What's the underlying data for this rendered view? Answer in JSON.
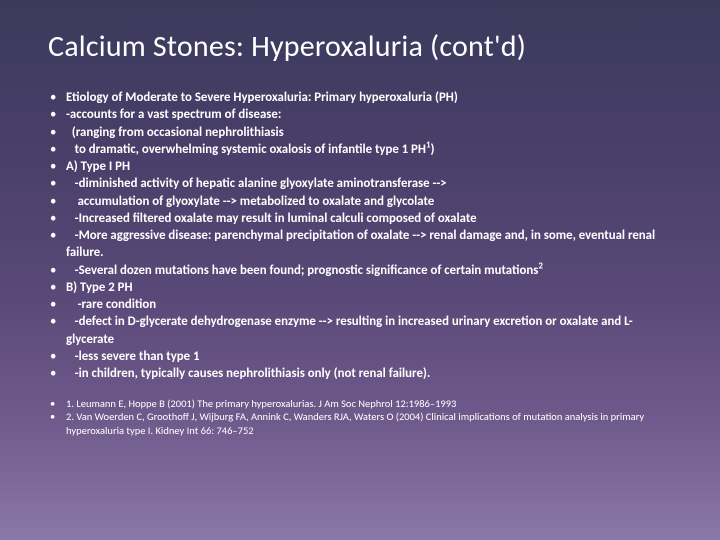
{
  "title": "Calcium Stones: Hyperoxaluria (cont'd)",
  "bullet_glyph": "•",
  "colors": {
    "text": "#ffffff",
    "bg_top": "#3b3a5c",
    "bg_bottom": "#8a78a8"
  },
  "bullets": [
    {
      "text": "Etiology of Moderate to Severe Hyperoxaluria: Primary hyperoxaluria (PH)",
      "indent": 0,
      "bold": true
    },
    {
      "text": "-accounts for a vast spectrum of disease:",
      "indent": 0,
      "bold": true
    },
    {
      "text": "  (ranging from occasional nephrolithiasis",
      "indent": 0,
      "bold": true
    },
    {
      "text_html": "   to dramatic, overwhelming systemic oxalosis of infantile type 1 PH<span class='sup'>1</span>)",
      "indent": 0,
      "bold": true
    },
    {
      "text": "A) Type I PH",
      "indent": 0,
      "bold": true
    },
    {
      "text": "   -diminished activity of hepatic alanine glyoxylate aminotransferase -->",
      "indent": 0,
      "bold": true
    },
    {
      "text": "    accumulation of glyoxylate --> metabolized to oxalate and glycolate",
      "indent": 0,
      "bold": true
    },
    {
      "text": "   -Increased filtered oxalate may result in luminal calculi composed of oxalate",
      "indent": 0,
      "bold": true
    },
    {
      "text": "   -More aggressive disease: parenchymal precipitation of oxalate --> renal damage and, in some, eventual renal failure.",
      "indent": 0,
      "bold": true
    },
    {
      "text_html": "   -Several dozen mutations have been found; prognostic significance of certain mutations<span class='sup'>2</span>",
      "indent": 0,
      "bold": true
    },
    {
      "text": "B) Type 2 PH",
      "indent": 0,
      "bold": true
    },
    {
      "text": "    -rare condition",
      "indent": 0,
      "bold": true
    },
    {
      "text": "   -defect in D-glycerate dehydrogenase enzyme --> resulting in increased urinary excretion or oxalate and L-glycerate",
      "indent": 0,
      "bold": true
    },
    {
      "text": "   -less severe than type 1",
      "indent": 0,
      "bold": true
    },
    {
      "text": "   -in children, typically causes nephrolithiasis only (not renal failure).",
      "indent": 0,
      "bold": true
    }
  ],
  "references": [
    {
      "text": "1.  Leumann E, Hoppe B (2001) The primary hyperoxalurias. J Am Soc Nephrol 12:1986–1993"
    },
    {
      "text": "2.  Van Woerden C, Groothoff J, Wijburg FA, Annink C, Wanders RJA, Waters O (2004) Clinical implications of mutation analysis in primary hyperoxaluria type I. Kidney Int 66: 746–752"
    }
  ]
}
